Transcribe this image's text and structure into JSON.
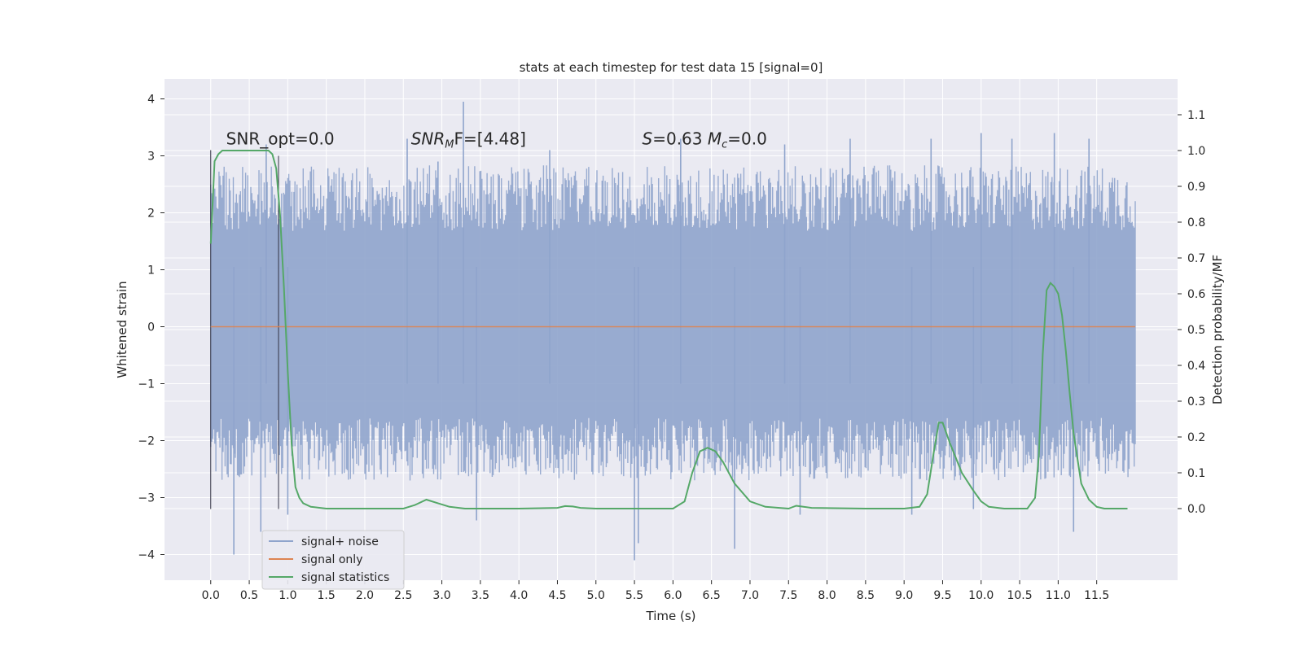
{
  "chart_data": {
    "type": "line",
    "title": "stats at each timestep for test data 15 [signal=0]",
    "xlabel": "Time (s)",
    "ylabel": "Whitened strain",
    "y2label": "Detection probability/MF",
    "xlim": [
      -0.6,
      12.55
    ],
    "ylim": [
      -4.45,
      4.35
    ],
    "y2lim": [
      -0.2,
      1.2
    ],
    "xticks": [
      0.0,
      0.5,
      1.0,
      1.5,
      2.0,
      2.5,
      3.0,
      3.5,
      4.0,
      4.5,
      5.0,
      5.5,
      6.0,
      6.5,
      7.0,
      7.5,
      8.0,
      8.5,
      9.0,
      9.5,
      10.0,
      10.5,
      11.0,
      11.5
    ],
    "xtick_labels": [
      "0.0",
      "0.5",
      "1.0",
      "1.5",
      "2.0",
      "2.5",
      "3.0",
      "3.5",
      "4.0",
      "4.5",
      "5.0",
      "5.5",
      "6.0",
      "6.5",
      "7.0",
      "7.5",
      "8.0",
      "8.5",
      "9.0",
      "9.5",
      "10.0",
      "10.5",
      "11.0",
      "11.5"
    ],
    "yticks": [
      -4,
      -3,
      -2,
      -1,
      0,
      1,
      2,
      3,
      4
    ],
    "ytick_labels": [
      "−4",
      "−3",
      "−2",
      "−1",
      "0",
      "1",
      "2",
      "3",
      "4"
    ],
    "y2ticks": [
      0.0,
      0.1,
      0.2,
      0.3,
      0.4,
      0.5,
      0.6,
      0.7,
      0.8,
      0.9,
      1.0,
      1.1
    ],
    "y2tick_labels": [
      "0.0",
      "0.1",
      "0.2",
      "0.3",
      "0.4",
      "0.5",
      "0.6",
      "0.7",
      "0.8",
      "0.9",
      "1.0",
      "1.1"
    ],
    "grid": true,
    "legend_placement": "lower-left",
    "annotations": [
      {
        "text": "SNR_opt=0.0",
        "x": 0.2,
        "y": 3.2
      },
      {
        "text_parts": [
          "SNR",
          "M",
          "F=[4.48]"
        ],
        "x": 2.6,
        "y": 3.2
      },
      {
        "text_parts": [
          "S",
          "=0.63   ",
          "M",
          "c",
          "=0.0"
        ],
        "x": 5.6,
        "y": 3.2
      }
    ],
    "vlines": [
      {
        "x": 0.0,
        "ymin": -3.2,
        "ymax": 3.1
      },
      {
        "x": 0.88,
        "ymin": -3.2,
        "ymax": 3.0
      }
    ],
    "series": [
      {
        "name": "signal+ noise",
        "axis": "left",
        "color": "#8fa4cc",
        "t_range": [
          0.0,
          12.0
        ],
        "envelope_typical": [
          -2.0,
          2.1
        ],
        "spikes": [
          {
            "t": 0.3,
            "y": -4.0
          },
          {
            "t": 0.65,
            "y": -3.6
          },
          {
            "t": 0.72,
            "y": 3.2
          },
          {
            "t": 1.0,
            "y": -3.3
          },
          {
            "t": 2.55,
            "y": 3.3
          },
          {
            "t": 2.95,
            "y": 2.9
          },
          {
            "t": 3.28,
            "y": 3.95
          },
          {
            "t": 3.45,
            "y": -3.4
          },
          {
            "t": 4.4,
            "y": 3.1
          },
          {
            "t": 5.5,
            "y": -4.1
          },
          {
            "t": 5.55,
            "y": -3.8
          },
          {
            "t": 6.1,
            "y": 3.3
          },
          {
            "t": 6.8,
            "y": -3.9
          },
          {
            "t": 7.45,
            "y": 3.2
          },
          {
            "t": 7.65,
            "y": -3.3
          },
          {
            "t": 8.3,
            "y": 3.3
          },
          {
            "t": 9.1,
            "y": -3.3
          },
          {
            "t": 9.35,
            "y": 3.3
          },
          {
            "t": 9.9,
            "y": -3.2
          },
          {
            "t": 10.0,
            "y": 3.4
          },
          {
            "t": 10.4,
            "y": 3.3
          },
          {
            "t": 10.95,
            "y": 3.4
          },
          {
            "t": 11.2,
            "y": -3.6
          },
          {
            "t": 11.4,
            "y": 3.3
          }
        ]
      },
      {
        "name": "signal only",
        "axis": "left",
        "color": "#dd8452",
        "x": [
          0.0,
          12.0
        ],
        "y": [
          0.0,
          0.0
        ]
      },
      {
        "name": "signal statistics",
        "axis": "right",
        "color": "#55a868",
        "x": [
          0.0,
          0.05,
          0.1,
          0.15,
          0.2,
          0.3,
          0.4,
          0.5,
          0.6,
          0.7,
          0.75,
          0.8,
          0.85,
          0.9,
          0.95,
          1.0,
          1.05,
          1.1,
          1.15,
          1.2,
          1.3,
          1.5,
          2.0,
          2.5,
          2.65,
          2.8,
          2.95,
          3.1,
          3.3,
          3.6,
          4.0,
          4.5,
          4.6,
          4.7,
          4.8,
          5.0,
          5.5,
          6.0,
          6.15,
          6.25,
          6.35,
          6.45,
          6.55,
          6.65,
          6.8,
          7.0,
          7.2,
          7.5,
          7.6,
          7.8,
          8.5,
          9.0,
          9.2,
          9.3,
          9.38,
          9.45,
          9.5,
          9.6,
          9.75,
          9.9,
          10.0,
          10.1,
          10.3,
          10.6,
          10.7,
          10.75,
          10.8,
          10.85,
          10.9,
          10.95,
          11.0,
          11.05,
          11.1,
          11.15,
          11.2,
          11.3,
          11.4,
          11.5,
          11.6,
          11.7,
          11.9
        ],
        "y": [
          0.74,
          0.97,
          0.99,
          1.0,
          1.0,
          1.0,
          1.0,
          1.0,
          1.0,
          1.0,
          1.0,
          0.99,
          0.95,
          0.82,
          0.62,
          0.38,
          0.18,
          0.06,
          0.03,
          0.015,
          0.005,
          0.0,
          0.0,
          0.0,
          0.01,
          0.025,
          0.015,
          0.005,
          0.0,
          0.0,
          0.0,
          0.002,
          0.007,
          0.006,
          0.002,
          0.0,
          0.0,
          0.0,
          0.02,
          0.1,
          0.16,
          0.17,
          0.16,
          0.13,
          0.07,
          0.02,
          0.005,
          0.0,
          0.008,
          0.002,
          0.0,
          0.0,
          0.005,
          0.04,
          0.15,
          0.24,
          0.24,
          0.18,
          0.1,
          0.05,
          0.02,
          0.005,
          0.0,
          0.0,
          0.03,
          0.15,
          0.43,
          0.61,
          0.63,
          0.62,
          0.6,
          0.54,
          0.44,
          0.32,
          0.21,
          0.07,
          0.025,
          0.005,
          0.0,
          0.0,
          0.0
        ]
      }
    ]
  }
}
